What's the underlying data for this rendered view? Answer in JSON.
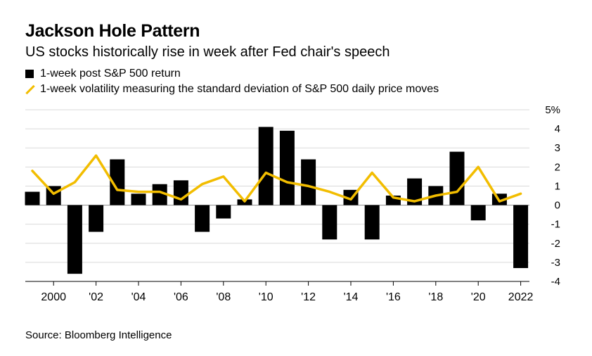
{
  "header": {
    "title": "Jackson Hole Pattern",
    "subtitle": "US stocks historically rise in week after Fed chair's speech"
  },
  "legend": {
    "return_label": "1-week post S&P 500 return",
    "volatility_label": "1-week volatility measuring the standard deviation of S&P 500 daily price moves"
  },
  "source": "Source: Bloomberg Intelligence",
  "colors": {
    "bars": "#000000",
    "line": "#f2bd00",
    "grid": "#d9d9d9"
  },
  "chart_data": {
    "type": "bar",
    "x": [
      1999,
      2000,
      2001,
      2002,
      2003,
      2004,
      2005,
      2006,
      2007,
      2008,
      2009,
      2010,
      2011,
      2012,
      2013,
      2014,
      2015,
      2016,
      2017,
      2018,
      2019,
      2020,
      2021,
      2022
    ],
    "x_tick_values": [
      2000,
      2002,
      2004,
      2006,
      2008,
      2010,
      2012,
      2014,
      2016,
      2018,
      2020,
      2022
    ],
    "x_tick_labels": [
      "2000",
      "'02",
      "'04",
      "'06",
      "'08",
      "'10",
      "'12",
      "'14",
      "'16",
      "'18",
      "'20",
      "2022"
    ],
    "y_ticks": [
      5,
      4,
      3,
      2,
      1,
      0,
      -1,
      -2,
      -3,
      -4
    ],
    "y_tick_labels": [
      "5%",
      "4",
      "3",
      "2",
      "1",
      "0",
      "-1",
      "-2",
      "-3",
      "-4"
    ],
    "ylim": [
      -4,
      5
    ],
    "grid": true,
    "series": [
      {
        "name": "1-week post S&P 500 return",
        "type": "bar",
        "values": [
          0.7,
          1.0,
          -3.6,
          -1.4,
          2.4,
          0.6,
          1.1,
          1.3,
          -1.4,
          -0.7,
          0.3,
          4.1,
          3.9,
          2.4,
          -1.8,
          0.8,
          -1.8,
          0.5,
          1.4,
          1.0,
          2.8,
          -0.8,
          0.6,
          -3.3
        ]
      },
      {
        "name": "1-week volatility measuring the standard deviation of S&P 500 daily price moves",
        "type": "line",
        "values": [
          1.8,
          0.6,
          1.2,
          2.6,
          0.8,
          0.7,
          0.7,
          0.3,
          1.1,
          1.5,
          0.2,
          1.7,
          1.2,
          1.0,
          0.7,
          0.3,
          1.7,
          0.4,
          0.2,
          0.5,
          0.7,
          2.0,
          0.2,
          0.6
        ]
      }
    ]
  }
}
